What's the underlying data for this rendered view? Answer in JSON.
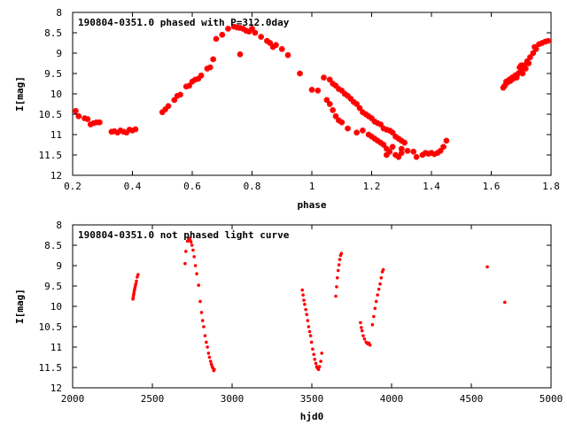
{
  "chart_data": [
    {
      "type": "scatter",
      "title": "190804-0351.0 phased with P=312.0day",
      "xlabel": "phase",
      "ylabel": "I[mag]",
      "xlim": [
        0.2,
        1.8
      ],
      "ylim": [
        12,
        8
      ],
      "y_inverted": true,
      "grid": false,
      "color": "#ff0000",
      "xticks": [
        "0.2",
        "0.4",
        "0.6",
        "0.8",
        "1",
        "1.2",
        "1.4",
        "1.6",
        "1.8"
      ],
      "yticks": [
        "8",
        "8.5",
        "9",
        "9.5",
        "10",
        "10.5",
        "11",
        "11.5",
        "12"
      ],
      "series": [
        {
          "points": [
            [
              0.21,
              10.42
            ],
            [
              0.22,
              10.55
            ],
            [
              0.24,
              10.6
            ],
            [
              0.25,
              10.62
            ],
            [
              0.26,
              10.75
            ],
            [
              0.27,
              10.72
            ],
            [
              0.28,
              10.7
            ],
            [
              0.29,
              10.7
            ],
            [
              0.33,
              10.93
            ],
            [
              0.34,
              10.92
            ],
            [
              0.35,
              10.95
            ],
            [
              0.36,
              10.9
            ],
            [
              0.37,
              10.93
            ],
            [
              0.38,
              10.95
            ],
            [
              0.39,
              10.88
            ],
            [
              0.4,
              10.9
            ],
            [
              0.41,
              10.87
            ],
            [
              0.5,
              10.45
            ],
            [
              0.51,
              10.38
            ],
            [
              0.52,
              10.3
            ],
            [
              0.54,
              10.15
            ],
            [
              0.55,
              10.05
            ],
            [
              0.56,
              10.02
            ],
            [
              0.58,
              9.82
            ],
            [
              0.59,
              9.8
            ],
            [
              0.6,
              9.7
            ],
            [
              0.61,
              9.65
            ],
            [
              0.62,
              9.63
            ],
            [
              0.63,
              9.55
            ],
            [
              0.65,
              9.38
            ],
            [
              0.66,
              9.35
            ],
            [
              0.67,
              9.15
            ],
            [
              0.68,
              8.65
            ],
            [
              0.7,
              8.55
            ],
            [
              0.72,
              8.4
            ],
            [
              0.74,
              8.35
            ],
            [
              0.75,
              8.37
            ],
            [
              0.76,
              8.38
            ],
            [
              0.77,
              8.4
            ],
            [
              0.78,
              8.45
            ],
            [
              0.79,
              8.47
            ],
            [
              0.8,
              8.4
            ],
            [
              0.81,
              8.5
            ],
            [
              0.83,
              8.6
            ],
            [
              0.85,
              8.7
            ],
            [
              0.86,
              8.75
            ],
            [
              0.87,
              8.85
            ],
            [
              0.88,
              8.8
            ],
            [
              0.9,
              8.9
            ],
            [
              0.92,
              9.05
            ],
            [
              0.76,
              9.03
            ],
            [
              0.96,
              9.5
            ],
            [
              1.0,
              9.9
            ],
            [
              1.02,
              9.92
            ],
            [
              1.04,
              9.6
            ],
            [
              1.06,
              9.65
            ],
            [
              1.07,
              9.75
            ],
            [
              1.08,
              9.8
            ],
            [
              1.09,
              9.88
            ],
            [
              1.1,
              9.92
            ],
            [
              1.11,
              10.0
            ],
            [
              1.12,
              10.05
            ],
            [
              1.13,
              10.12
            ],
            [
              1.14,
              10.2
            ],
            [
              1.15,
              10.25
            ],
            [
              1.16,
              10.35
            ],
            [
              1.17,
              10.45
            ],
            [
              1.18,
              10.5
            ],
            [
              1.19,
              10.55
            ],
            [
              1.05,
              10.15
            ],
            [
              1.06,
              10.25
            ],
            [
              1.07,
              10.4
            ],
            [
              1.08,
              10.55
            ],
            [
              1.09,
              10.65
            ],
            [
              1.1,
              10.7
            ],
            [
              1.12,
              10.85
            ],
            [
              1.15,
              10.95
            ],
            [
              1.17,
              10.9
            ],
            [
              1.19,
              11.0
            ],
            [
              1.2,
              11.05
            ],
            [
              1.21,
              11.1
            ],
            [
              1.22,
              11.15
            ],
            [
              1.23,
              11.2
            ],
            [
              1.25,
              11.35
            ],
            [
              1.26,
              11.42
            ],
            [
              1.28,
              11.5
            ],
            [
              1.29,
              11.55
            ],
            [
              1.3,
              11.45
            ],
            [
              1.2,
              10.6
            ],
            [
              1.21,
              10.68
            ],
            [
              1.22,
              10.72
            ],
            [
              1.23,
              10.75
            ],
            [
              1.24,
              10.85
            ],
            [
              1.25,
              10.88
            ],
            [
              1.26,
              10.9
            ],
            [
              1.27,
              10.95
            ],
            [
              1.28,
              11.05
            ],
            [
              1.29,
              11.1
            ],
            [
              1.3,
              11.15
            ],
            [
              1.31,
              11.2
            ],
            [
              1.24,
              11.25
            ],
            [
              1.27,
              11.3
            ],
            [
              1.3,
              11.35
            ],
            [
              1.32,
              11.4
            ],
            [
              1.34,
              11.42
            ],
            [
              1.35,
              11.55
            ],
            [
              1.37,
              11.5
            ],
            [
              1.38,
              11.45
            ],
            [
              1.39,
              11.47
            ],
            [
              1.4,
              11.45
            ],
            [
              1.41,
              11.48
            ],
            [
              1.42,
              11.45
            ],
            [
              1.43,
              11.4
            ],
            [
              1.44,
              11.3
            ],
            [
              1.45,
              11.15
            ],
            [
              1.25,
              11.5
            ],
            [
              1.64,
              9.85
            ],
            [
              1.645,
              9.8
            ],
            [
              1.65,
              9.7
            ],
            [
              1.655,
              9.72
            ],
            [
              1.66,
              9.65
            ],
            [
              1.665,
              9.68
            ],
            [
              1.67,
              9.6
            ],
            [
              1.675,
              9.62
            ],
            [
              1.68,
              9.55
            ],
            [
              1.685,
              9.6
            ],
            [
              1.69,
              9.5
            ],
            [
              1.695,
              9.48
            ],
            [
              1.7,
              9.45
            ],
            [
              1.705,
              9.5
            ],
            [
              1.71,
              9.3
            ],
            [
              1.715,
              9.38
            ],
            [
              1.72,
              9.2
            ],
            [
              1.725,
              9.25
            ],
            [
              1.73,
              9.1
            ],
            [
              1.74,
              9.0
            ],
            [
              1.745,
              8.85
            ],
            [
              1.75,
              8.9
            ],
            [
              1.76,
              8.78
            ],
            [
              1.77,
              8.75
            ],
            [
              1.78,
              8.72
            ],
            [
              1.79,
              8.7
            ],
            [
              1.695,
              9.35
            ],
            [
              1.7,
              9.3
            ],
            [
              1.705,
              9.4
            ]
          ]
        }
      ]
    },
    {
      "type": "scatter",
      "title": "190804-0351.0 not phased light curve",
      "xlabel": "hjd0",
      "ylabel": "I[mag]",
      "xlim": [
        2000,
        5000
      ],
      "ylim": [
        12,
        8
      ],
      "y_inverted": true,
      "grid": false,
      "color": "#ff0000",
      "xticks": [
        "2000",
        "2500",
        "3000",
        "3500",
        "4000",
        "4500",
        "5000"
      ],
      "yticks": [
        "8",
        "8.5",
        "9",
        "9.5",
        "10",
        "10.5",
        "11",
        "11.5",
        "12"
      ],
      "series": [
        {
          "points": [
            [
              2378,
              9.82
            ],
            [
              2380,
              9.78
            ],
            [
              2382,
              9.72
            ],
            [
              2384,
              9.68
            ],
            [
              2386,
              9.62
            ],
            [
              2388,
              9.6
            ],
            [
              2390,
              9.55
            ],
            [
              2393,
              9.5
            ],
            [
              2396,
              9.45
            ],
            [
              2400,
              9.38
            ],
            [
              2405,
              9.28
            ],
            [
              2410,
              9.22
            ],
            [
              2705,
              8.95
            ],
            [
              2710,
              8.65
            ],
            [
              2720,
              8.4
            ],
            [
              2728,
              8.35
            ],
            [
              2732,
              8.33
            ],
            [
              2737,
              8.38
            ],
            [
              2742,
              8.42
            ],
            [
              2748,
              8.5
            ],
            [
              2755,
              8.62
            ],
            [
              2762,
              8.78
            ],
            [
              2770,
              9.0
            ],
            [
              2778,
              9.2
            ],
            [
              2790,
              9.48
            ],
            [
              2800,
              9.88
            ],
            [
              2808,
              10.15
            ],
            [
              2815,
              10.35
            ],
            [
              2822,
              10.5
            ],
            [
              2830,
              10.72
            ],
            [
              2838,
              10.88
            ],
            [
              2845,
              11.0
            ],
            [
              2852,
              11.15
            ],
            [
              2858,
              11.25
            ],
            [
              2865,
              11.35
            ],
            [
              2870,
              11.42
            ],
            [
              2875,
              11.48
            ],
            [
              2880,
              11.52
            ],
            [
              2885,
              11.58
            ],
            [
              2888,
              11.55
            ],
            [
              3440,
              9.6
            ],
            [
              3445,
              9.72
            ],
            [
              3450,
              9.85
            ],
            [
              3455,
              9.95
            ],
            [
              3462,
              10.08
            ],
            [
              3468,
              10.2
            ],
            [
              3474,
              10.35
            ],
            [
              3480,
              10.5
            ],
            [
              3486,
              10.62
            ],
            [
              3492,
              10.72
            ],
            [
              3498,
              10.88
            ],
            [
              3505,
              11.05
            ],
            [
              3512,
              11.18
            ],
            [
              3518,
              11.3
            ],
            [
              3525,
              11.4
            ],
            [
              3530,
              11.48
            ],
            [
              3536,
              11.52
            ],
            [
              3542,
              11.55
            ],
            [
              3548,
              11.48
            ],
            [
              3556,
              11.35
            ],
            [
              3562,
              11.15
            ],
            [
              3650,
              9.75
            ],
            [
              3655,
              9.52
            ],
            [
              3660,
              9.3
            ],
            [
              3665,
              9.12
            ],
            [
              3670,
              8.98
            ],
            [
              3675,
              8.85
            ],
            [
              3680,
              8.75
            ],
            [
              3685,
              8.7
            ],
            [
              3805,
              10.4
            ],
            [
              3810,
              10.52
            ],
            [
              3815,
              10.6
            ],
            [
              3822,
              10.72
            ],
            [
              3830,
              10.8
            ],
            [
              3840,
              10.88
            ],
            [
              3850,
              10.92
            ],
            [
              3858,
              10.9
            ],
            [
              3865,
              10.95
            ],
            [
              3880,
              10.45
            ],
            [
              3888,
              10.25
            ],
            [
              3896,
              10.05
            ],
            [
              3904,
              9.88
            ],
            [
              3912,
              9.72
            ],
            [
              3920,
              9.58
            ],
            [
              3928,
              9.45
            ],
            [
              3935,
              9.3
            ],
            [
              3942,
              9.15
            ],
            [
              3948,
              9.1
            ],
            [
              4600,
              9.03
            ],
            [
              4710,
              9.9
            ]
          ]
        }
      ]
    }
  ]
}
